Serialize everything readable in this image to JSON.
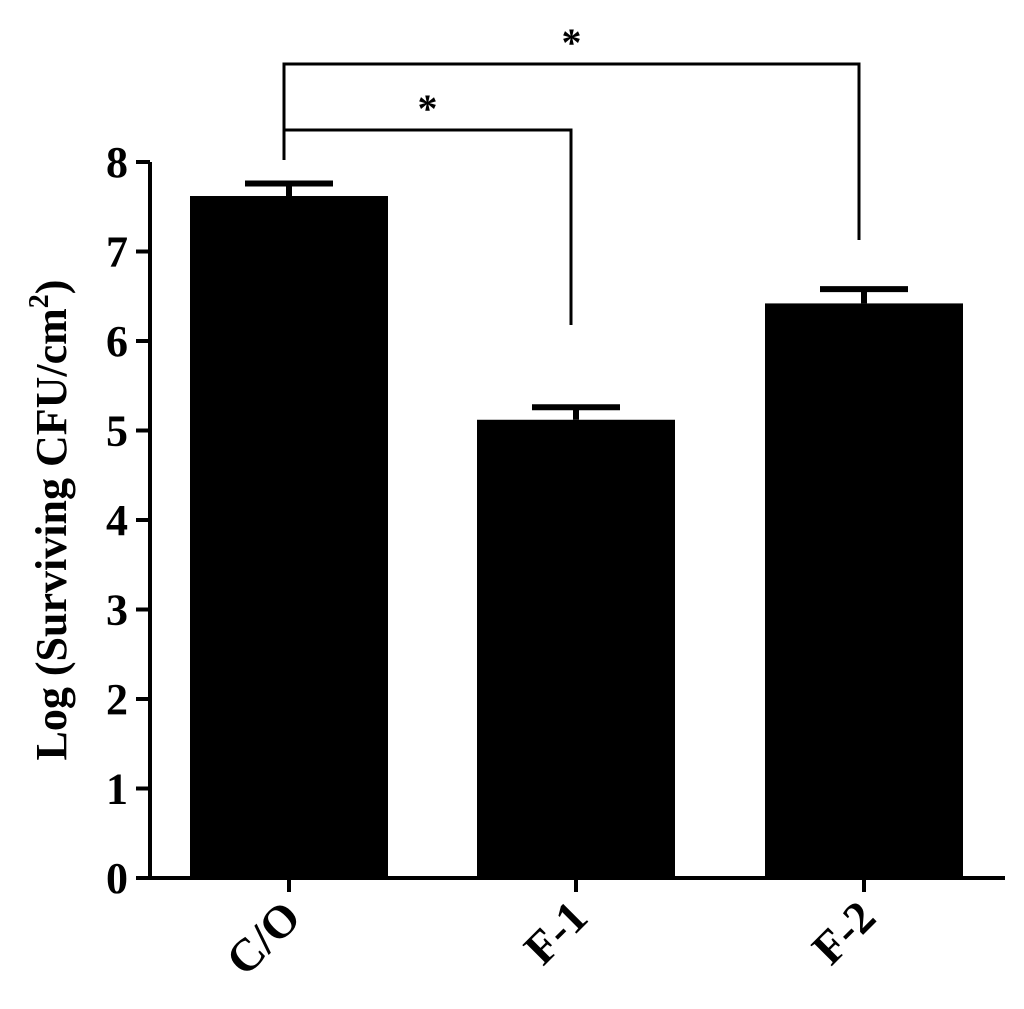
{
  "chart_data": {
    "type": "bar",
    "categories": [
      "C/O",
      "F-1",
      "F-2"
    ],
    "values": [
      7.62,
      5.12,
      6.42
    ],
    "errors": [
      0.14,
      0.14,
      0.16
    ],
    "ylabel_main": "Log (Surviving CFU/cm",
    "ylabel_sup": "2",
    "ylabel_close": ")",
    "xlabel": "",
    "ylim": [
      0,
      8
    ],
    "yticks": [
      "0",
      "1",
      "2",
      "3",
      "4",
      "5",
      "6",
      "7",
      "8"
    ],
    "grid": false,
    "bar_color": "#000000",
    "significance": [
      {
        "from": 0,
        "to": 1,
        "label": "*"
      },
      {
        "from": 0,
        "to": 2,
        "label": "*"
      }
    ]
  }
}
